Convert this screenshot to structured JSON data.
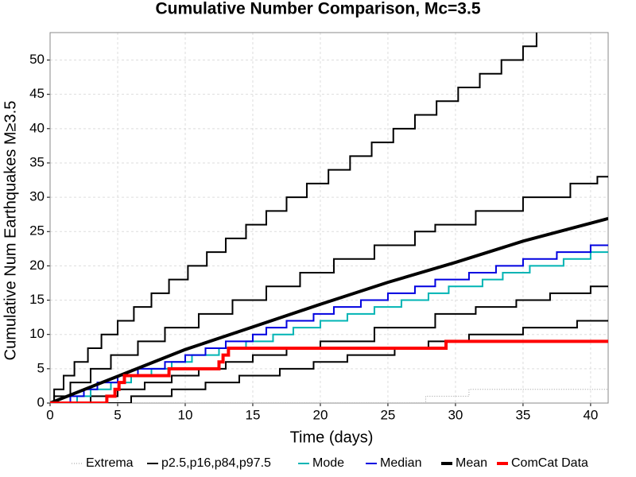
{
  "chart_data": {
    "type": "step",
    "title": "Cumulative Number Comparison, Mc=3.5",
    "x_label": "Time (days)",
    "y_label": "Cumulative Num Earthquakes M≥3.5",
    "xlim": [
      0,
      41.3
    ],
    "ylim": [
      0,
      54
    ],
    "xticks": [
      0,
      5,
      10,
      15,
      20,
      25,
      30,
      35,
      40
    ],
    "yticks": [
      0,
      5,
      10,
      15,
      20,
      25,
      30,
      35,
      40,
      45,
      50
    ],
    "grid": true,
    "series": [
      {
        "name": "Extrema",
        "color": "#999999",
        "width": 1,
        "dash": true,
        "smooth": false,
        "lines": [
          {
            "x": [
              0,
              27.8,
              31,
              41.3
            ],
            "values": [
              0,
              1,
              2,
              2
            ]
          }
        ]
      },
      {
        "name": "p2.5,p16,p84,p97.5",
        "color": "#000000",
        "width": 2,
        "smooth": false,
        "lines": [
          {
            "x": [
              0,
              6,
              9,
              11.5,
              14,
              17,
              19.5,
              22,
              25.5,
              28,
              31,
              35,
              39,
              41.3
            ],
            "values": [
              0,
              1,
              2,
              3,
              4,
              5,
              6,
              7,
              8,
              9,
              10,
              11,
              12,
              12
            ]
          },
          {
            "x": [
              0,
              3,
              5,
              7,
              9,
              11,
              13,
              15,
              17.5,
              20,
              24,
              28.5,
              31.5,
              34.5,
              37,
              40,
              41.3
            ],
            "values": [
              0,
              1,
              2,
              3,
              4,
              5,
              6,
              7,
              8,
              9,
              11,
              13,
              14,
              15,
              16,
              17,
              17
            ]
          },
          {
            "x": [
              0,
              0.3,
              1.5,
              3,
              4.5,
              6.5,
              8.5,
              11,
              13.5,
              16,
              18.5,
              21,
              24,
              27,
              28.5,
              31.5,
              35,
              38.5,
              40.5,
              41.3
            ],
            "values": [
              0,
              1,
              3,
              5,
              7,
              9,
              11,
              13,
              15,
              17,
              19,
              21,
              23,
              25,
              26,
              28,
              30,
              32,
              33,
              33
            ]
          },
          {
            "x": [
              0,
              0.3,
              1,
              1.8,
              2.8,
              3.8,
              5,
              6.2,
              7.5,
              8.8,
              10.2,
              11.6,
              13,
              14.5,
              16,
              17.5,
              19,
              20.6,
              22.2,
              23.8,
              25.4,
              27,
              28.6,
              30.2,
              31.8,
              33.4,
              35,
              36
            ],
            "values": [
              0,
              2,
              4,
              6,
              8,
              10,
              12,
              14,
              16,
              18,
              20,
              22,
              24,
              26,
              28,
              30,
              32,
              34,
              36,
              38,
              40,
              42,
              44,
              46,
              48,
              50,
              52,
              54
            ]
          }
        ]
      },
      {
        "name": "Mode",
        "color": "#00b4b4",
        "width": 2,
        "smooth": false,
        "lines": [
          {
            "x": [
              0,
              2,
              3,
              4.5,
              6,
              7.5,
              9,
              10.5,
              12.5,
              14.5,
              16.5,
              18,
              20,
              22,
              24,
              26,
              28,
              29.5,
              32,
              33.5,
              35.5,
              38,
              40,
              41.3
            ],
            "values": [
              0,
              1,
              2,
              3,
              4,
              5,
              6,
              7,
              8,
              9,
              10,
              11,
              12,
              13,
              14,
              15,
              16,
              17,
              18,
              19,
              20,
              21,
              22,
              22
            ]
          }
        ]
      },
      {
        "name": "Median",
        "color": "#0000e0",
        "width": 2,
        "smooth": false,
        "lines": [
          {
            "x": [
              0,
              1.5,
              2.5,
              3.5,
              5,
              6.5,
              8.5,
              10,
              11.5,
              13,
              15,
              16,
              17.5,
              19.5,
              21,
              23,
              25,
              27,
              28.5,
              31,
              33,
              35,
              37.5,
              40,
              41.3
            ],
            "values": [
              0,
              1,
              2,
              3,
              4,
              5,
              6,
              7,
              8,
              9,
              10,
              11,
              12,
              13,
              14,
              15,
              16,
              17,
              18,
              19,
              20,
              21,
              22,
              23,
              23
            ]
          }
        ]
      },
      {
        "name": "Mean",
        "color": "#000000",
        "width": 4,
        "smooth": true,
        "lines": [
          {
            "x": [
              0,
              5,
              10,
              15,
              20,
              25,
              30,
              35,
              41.3
            ],
            "values": [
              0,
              3.9,
              7.8,
              11.1,
              14.4,
              17.6,
              20.5,
              23.6,
              26.9
            ]
          }
        ]
      },
      {
        "name": "ComCat Data",
        "color": "#ff0000",
        "width": 4,
        "smooth": false,
        "lines": [
          {
            "x": [
              0,
              4.2,
              4.8,
              5.1,
              5.5,
              8.8,
              12.5,
              12.8,
              13.2,
              29.3,
              41.3
            ],
            "values": [
              0,
              1,
              2,
              3,
              4,
              5,
              6,
              7,
              8,
              9,
              9
            ]
          }
        ]
      }
    ]
  }
}
